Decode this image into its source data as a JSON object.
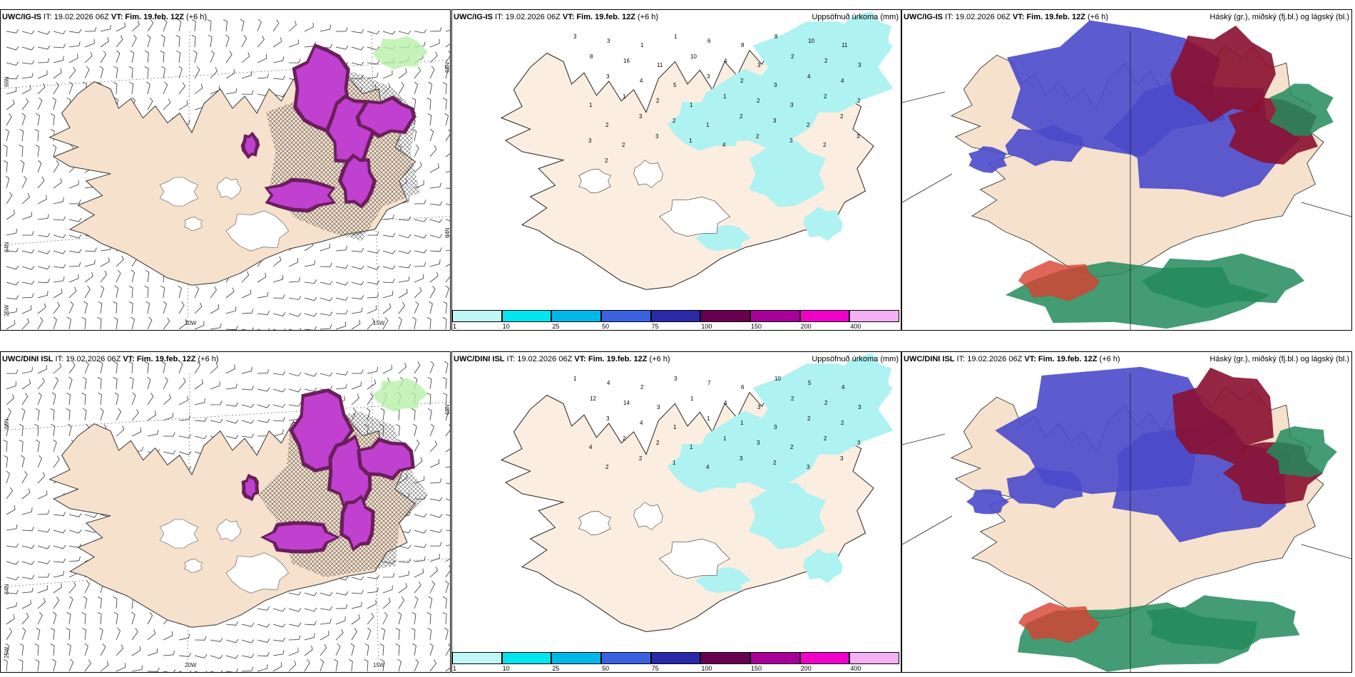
{
  "panels": [
    {
      "id": "r1c1",
      "title_model": "UWC/IG-IS",
      "title_it_label": "IT:",
      "title_it": "19.02.2026 06Z",
      "title_vt_label": "VT:",
      "title_vt": "Fim. 19.feb. 12Z",
      "title_lead": "(+6 h)",
      "right_title": "",
      "lon_labels": [
        "20W",
        "15W"
      ],
      "lat_labels": [
        "66N",
        "64N",
        "25W",
        "65N",
        "64N"
      ]
    },
    {
      "id": "r1c2",
      "title_model": "UWC/IG-IS",
      "title_it_label": "IT:",
      "title_it": "19.02.2026 06Z",
      "title_vt_label": "VT:",
      "title_vt": "Fim. 19.feb. 12Z",
      "title_lead": "(+6 h)",
      "right_title": "Uppsöfnuð úrkoma (mm)",
      "precip_values": [
        "3",
        "3",
        "1",
        "1",
        "6",
        "8",
        "8",
        "10",
        "11",
        "8",
        "16",
        "11",
        "10",
        "4",
        "3",
        "2",
        "2",
        "3",
        "3",
        "4",
        "5",
        "3",
        "2",
        "3",
        "4",
        "4",
        "1",
        "1",
        "2",
        "1",
        "1",
        "2",
        "3",
        "2",
        "2",
        "2",
        "3",
        "2",
        "1",
        "2",
        "3",
        "2",
        "2",
        "3",
        "2",
        "3",
        "1",
        "4",
        "2",
        "3",
        "2",
        "3",
        "2"
      ]
    },
    {
      "id": "r1c3",
      "title_model": "UWC/IG-IS",
      "title_it_label": "IT:",
      "title_it": "19.02.2026 06Z",
      "title_vt_label": "VT:",
      "title_vt": "Fim. 19.feb. 12Z",
      "title_lead": "(+6 h)",
      "right_title": "Háský (gr.), miðský (fj.bl.) og lágský (bl.)"
    },
    {
      "id": "r2c1",
      "title_model": "UWC/DINI ISL",
      "title_it_label": "IT:",
      "title_it": "19.02.2026 06Z",
      "title_vt_label": "VT:",
      "title_vt": "Fim. 19.feb. 12Z",
      "title_lead": "(+6 h)",
      "right_title": "",
      "lon_labels": [
        "20W",
        "15W"
      ],
      "lat_labels": [
        "66N",
        "64N",
        "25W",
        "65N"
      ]
    },
    {
      "id": "r2c2",
      "title_model": "UWC/DINI ISL",
      "title_it_label": "IT:",
      "title_it": "19.02.2026 06Z",
      "title_vt_label": "VT:",
      "title_vt": "Fim. 19.feb. 12Z",
      "title_lead": "(+6 h)",
      "right_title": "Uppsöfnuð úrkoma (mm)",
      "precip_values": [
        "1",
        "4",
        "2",
        "3",
        "7",
        "6",
        "10",
        "5",
        "4",
        "12",
        "14",
        "3",
        "1",
        "4",
        "3",
        "2",
        "2",
        "3",
        "3",
        "4",
        "1",
        "1",
        "1",
        "3",
        "2",
        "2",
        "4",
        "2",
        "2",
        "1",
        "1",
        "3",
        "2",
        "2",
        "3",
        "2",
        "2",
        "1",
        "4",
        "3",
        "2",
        "3",
        "3"
      ]
    },
    {
      "id": "r2c3",
      "title_model": "UWC/DINI ISL",
      "title_it_label": "IT:",
      "title_it": "19.02.2026 06Z",
      "title_vt_label": "VT:",
      "title_vt": "Fim. 19.feb. 12Z",
      "title_lead": "(+6 h)",
      "right_title": "Háský (gr.), miðský (fj.bl.) og lágský (bl.)"
    }
  ],
  "colorbar": {
    "ticks": [
      "1",
      "10",
      "25",
      "50",
      "75",
      "100",
      "150",
      "200",
      "400"
    ],
    "colors": [
      "#bff7f7",
      "#00e5ef",
      "#00b8e8",
      "#3a62e0",
      "#2a2aa8",
      "#6a0050",
      "#a8009a",
      "#f000c8",
      "#f4b0f4"
    ]
  },
  "colors": {
    "land": "#f5e1cc",
    "land_c2": "#fbeee0",
    "precip_light": "#aef2f2",
    "snow_purple": "#c040d0",
    "snow_dark": "#6a1f5a",
    "cloud_high": "#228b5a",
    "cloud_mid": "#4a4acb",
    "cloud_low": "#8b1030",
    "cloud_red": "#d84030"
  }
}
